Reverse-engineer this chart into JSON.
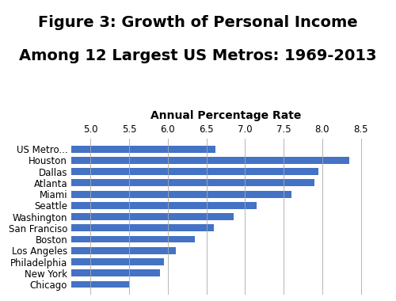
{
  "title_line1": "Figure 3: Growth of Personal Income",
  "title_line2": "Among 12 Largest US Metros: 1969-2013",
  "xlabel": "Annual Percentage Rate",
  "categories": [
    "Chicago",
    "New York",
    "Philadelphia",
    "Los Angeles",
    "Boston",
    "San Franciso",
    "Washington",
    "Seattle",
    "Miami",
    "Atlanta",
    "Dallas",
    "Houston",
    "US Metro..."
  ],
  "values": [
    5.5,
    5.9,
    5.95,
    6.1,
    6.35,
    6.6,
    6.85,
    7.15,
    7.6,
    7.9,
    7.95,
    8.35,
    6.62
  ],
  "bar_color": "#4472C4",
  "xlim_left": 4.75,
  "xlim_right": 8.75,
  "xticks": [
    5.0,
    5.5,
    6.0,
    6.5,
    7.0,
    7.5,
    8.0,
    8.5
  ],
  "background_color": "#ffffff",
  "title_fontsize": 14,
  "xlabel_fontsize": 10,
  "ytick_fontsize": 8.5,
  "xtick_fontsize": 8.5,
  "bar_height": 0.62
}
